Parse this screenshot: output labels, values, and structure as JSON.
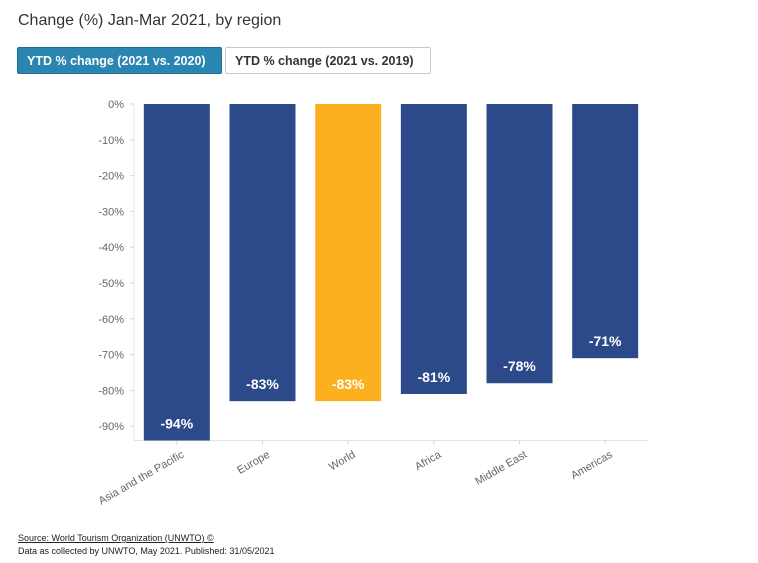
{
  "title": "Change (%) Jan-Mar 2021, by region",
  "tabs": [
    {
      "label": "YTD % change (2021 vs. 2020)",
      "active": true
    },
    {
      "label": "YTD % change (2021 vs. 2019)",
      "active": false
    }
  ],
  "footer": {
    "source": "Source: World Tourism Organization (UNWTO) ©",
    "note": "Data as collected by UNWTO, May 2021. Published: 31/05/2021"
  },
  "colors": {
    "region": "#2c4a8a",
    "world": "#fdb01f"
  },
  "chart_data": {
    "type": "bar",
    "categories": [
      "Asia and the Pacific",
      "Europe",
      "World",
      "Africa",
      "Middle East",
      "Americas"
    ],
    "values": [
      -94,
      -83,
      -83,
      -81,
      -78,
      -71
    ],
    "data_labels": [
      "-94%",
      "-83%",
      "-83%",
      "-81%",
      "-78%",
      "-71%"
    ],
    "highlight": "World",
    "yticks": [
      0,
      -10,
      -20,
      -30,
      -40,
      -50,
      -60,
      -70,
      -80,
      -90
    ],
    "ytick_labels": [
      "0%",
      "-10%",
      "-20%",
      "-30%",
      "-40%",
      "-50%",
      "-60%",
      "-70%",
      "-80%",
      "-90%"
    ],
    "ylim": [
      -94,
      0
    ],
    "xlabel": "",
    "ylabel": ""
  }
}
